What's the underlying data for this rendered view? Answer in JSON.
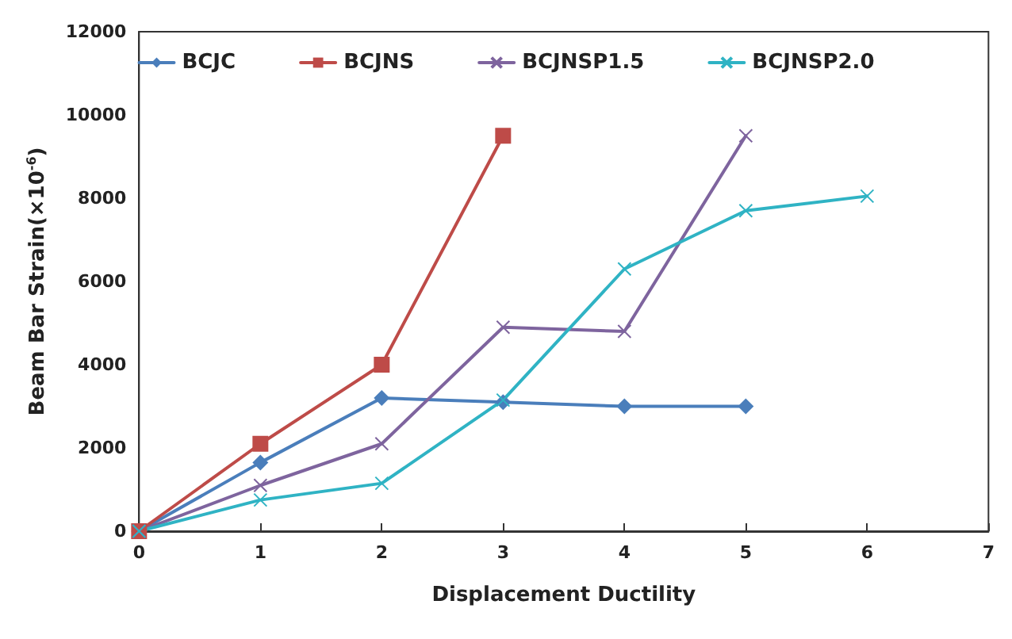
{
  "chart_data": {
    "type": "line",
    "xlabel": "Displacement Ductility",
    "ylabel": "Beam Bar Strain(×10$^{-6}$)",
    "xlim": [
      0,
      7
    ],
    "xticks": [
      0,
      1,
      2,
      3,
      4,
      5,
      6,
      7
    ],
    "ylim": [
      0,
      12000
    ],
    "yticks": [
      0,
      2000,
      4000,
      6000,
      8000,
      10000,
      12000
    ],
    "grid": false,
    "legend": "top",
    "line_style": "solid",
    "series": [
      {
        "name": "BCJC",
        "color": "#4a7ebb",
        "marker": "diamond",
        "x": [
          0,
          1,
          2,
          3,
          4,
          5
        ],
        "values": [
          0,
          1650,
          3200,
          3100,
          3000,
          3000
        ]
      },
      {
        "name": "BCJNS",
        "color": "#be4b48",
        "marker": "square",
        "x": [
          0,
          1,
          2,
          3
        ],
        "values": [
          0,
          2100,
          4000,
          9500
        ]
      },
      {
        "name": "BCJNSP1.5",
        "color": "#7e649e",
        "marker": "cross",
        "x": [
          0,
          1,
          2,
          3,
          4,
          5
        ],
        "values": [
          0,
          1100,
          2100,
          4900,
          4800,
          9500
        ]
      },
      {
        "name": "BCJNSP2.0",
        "color": "#2fb3c4",
        "marker": "cross",
        "x": [
          0,
          1,
          2,
          3,
          4,
          5,
          6
        ],
        "values": [
          0,
          750,
          1150,
          3150,
          6300,
          7700,
          8050
        ]
      }
    ]
  }
}
